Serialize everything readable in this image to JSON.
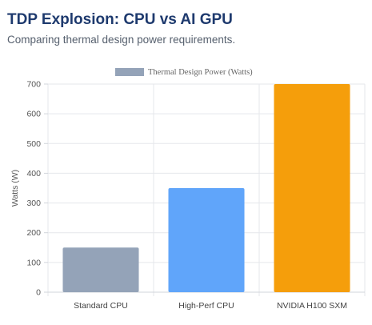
{
  "header": {
    "title": "TDP Explosion: CPU vs AI GPU",
    "subtitle": "Comparing thermal design power requirements."
  },
  "chart_data": {
    "type": "bar",
    "categories": [
      "Standard CPU",
      "High-Perf CPU",
      "NVIDIA H100 SXM"
    ],
    "series": [
      {
        "name": "Thermal Design Power (Watts)",
        "values": [
          150,
          350,
          700
        ]
      }
    ],
    "bar_colors": [
      "#94a3b8",
      "#60a5fa",
      "#f59e0b"
    ],
    "legend_color": "#94a3b8",
    "xlabel": "",
    "ylabel": "Watts (W)",
    "ylim": [
      0,
      700
    ],
    "yticks": [
      0,
      100,
      200,
      300,
      400,
      500,
      600,
      700
    ],
    "grid": true,
    "legend_position": "top-center"
  }
}
